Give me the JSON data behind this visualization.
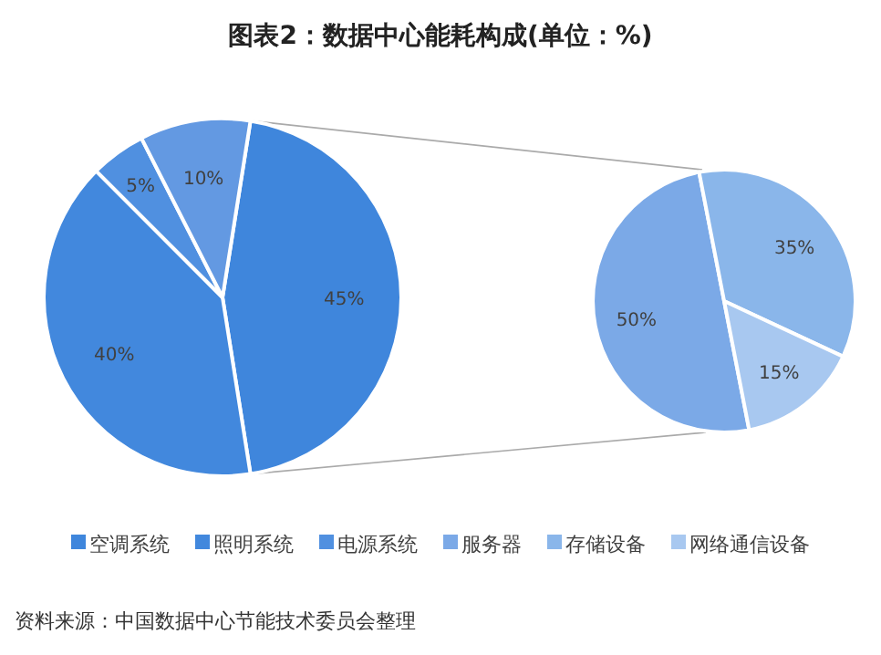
{
  "chart_data": [
    {
      "type": "pie",
      "title": "图表2：数据中心能耗构成(单位：%)",
      "categories": [
        "空调系统",
        "照明系统",
        "电源系统",
        null
      ],
      "values": [
        45,
        40,
        5,
        10
      ],
      "value_labels": [
        "45%",
        "40%",
        "5%",
        "10%"
      ],
      "colors": [
        "#3f86dc",
        "#4288dd",
        "#5090e0",
        "#6399e2"
      ],
      "legend": "bottom",
      "annotations": [
        "资料来源：中国数据中心节能技术委员会整理"
      ]
    },
    {
      "type": "pie",
      "categories": [
        "服务器",
        "存储设备",
        "网络通信设备"
      ],
      "values": [
        50,
        35,
        15
      ],
      "value_labels": [
        "50%",
        "35%",
        "15%"
      ],
      "colors": [
        "#7ba9e7",
        "#8ab6ea",
        "#a8c8f0"
      ],
      "legend": "bottom"
    }
  ]
}
